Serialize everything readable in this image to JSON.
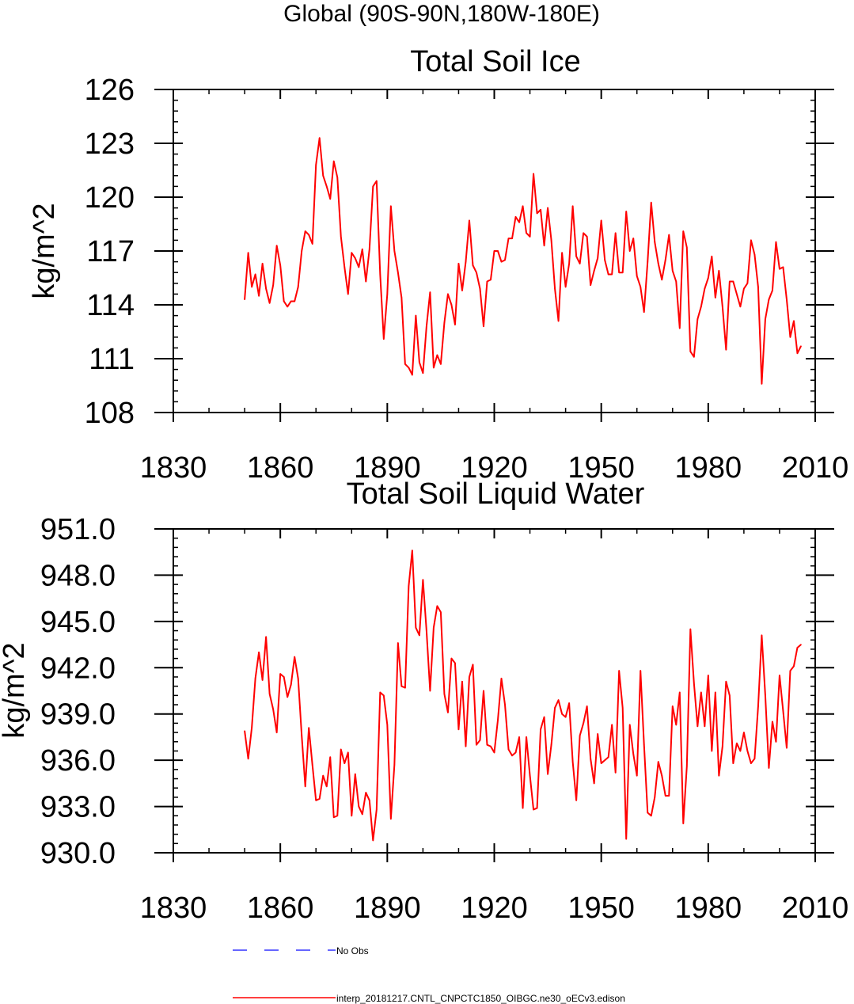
{
  "figure": {
    "title": "Global (90S-90N,180W-180E)"
  },
  "chart_data": [
    {
      "type": "line",
      "title": "Total Soil Ice",
      "xlabel": "",
      "ylabel": "kg/m^2",
      "xlim": [
        1830,
        2010
      ],
      "ylim": [
        108,
        126
      ],
      "x_ticks": [
        1830,
        1860,
        1890,
        1920,
        1950,
        1980,
        2010
      ],
      "y_ticks": [
        108,
        111,
        114,
        117,
        120,
        123,
        126
      ],
      "y_decimals": 0,
      "series": [
        {
          "name": "interp_20181217.CNTL_CNPCTC1850_OIBGC.ne30_oECv3.edison",
          "color": "#ff0000",
          "x_start": 1850,
          "values": [
            114.3,
            116.9,
            115.0,
            115.7,
            114.5,
            116.3,
            114.9,
            114.1,
            115.1,
            117.3,
            116.2,
            114.2,
            113.9,
            114.2,
            114.2,
            115.0,
            117.0,
            118.1,
            117.9,
            117.4,
            121.8,
            123.3,
            121.2,
            120.6,
            119.9,
            122.0,
            121.1,
            117.8,
            116.1,
            114.6,
            116.9,
            116.6,
            116.1,
            117.1,
            115.3,
            117.1,
            120.6,
            120.9,
            115.7,
            112.1,
            114.6,
            119.5,
            117.0,
            115.8,
            114.4,
            110.7,
            110.5,
            110.1,
            113.4,
            110.8,
            110.2,
            112.8,
            114.7,
            110.5,
            111.2,
            110.7,
            113.0,
            114.6,
            114.0,
            112.9,
            116.3,
            114.8,
            116.4,
            118.7,
            116.2,
            115.8,
            114.9,
            112.8,
            115.3,
            115.4,
            117.0,
            117.0,
            116.4,
            116.5,
            117.7,
            117.7,
            118.9,
            118.6,
            119.5,
            118.0,
            117.8,
            121.3,
            119.1,
            119.3,
            117.3,
            119.4,
            117.6,
            114.9,
            113.1,
            116.9,
            115.0,
            116.3,
            119.5,
            116.7,
            116.3,
            118.0,
            117.8,
            115.1,
            115.9,
            116.6,
            118.7,
            116.5,
            115.7,
            115.7,
            118.0,
            115.8,
            115.8,
            119.2,
            117.0,
            117.7,
            115.6,
            115.0,
            113.6,
            116.4,
            119.7,
            117.5,
            116.3,
            115.4,
            116.5,
            117.9,
            115.9,
            115.3,
            112.7,
            118.1,
            117.2,
            111.4,
            111.1,
            113.2,
            113.9,
            114.9,
            115.5,
            116.7,
            114.4,
            115.9,
            113.9,
            111.5,
            115.3,
            115.3,
            114.6,
            113.9,
            114.9,
            115.2,
            117.6,
            116.8,
            115.0,
            109.6,
            113.2,
            114.3,
            114.8,
            117.5,
            116.0,
            116.1,
            114.3,
            112.2,
            113.1,
            111.3,
            111.7
          ]
        }
      ]
    },
    {
      "type": "line",
      "title": "Total Soil Liquid Water",
      "xlabel": "",
      "ylabel": "kg/m^2",
      "xlim": [
        1830,
        2010
      ],
      "ylim": [
        930,
        951
      ],
      "x_ticks": [
        1830,
        1860,
        1890,
        1920,
        1950,
        1980,
        2010
      ],
      "y_ticks": [
        930,
        933,
        936,
        939,
        942,
        945,
        948,
        951
      ],
      "y_decimals": 1,
      "series": [
        {
          "name": "interp_20181217.CNTL_CNPCTC1850_OIBGC.ne30_oECv3.edison",
          "color": "#ff0000",
          "x_start": 1850,
          "values": [
            937.9,
            936.1,
            938.1,
            941.3,
            943.0,
            941.2,
            944.0,
            940.3,
            939.3,
            937.8,
            941.6,
            941.4,
            940.1,
            940.9,
            942.7,
            941.3,
            937.6,
            934.3,
            938.1,
            935.7,
            933.4,
            933.5,
            935.0,
            934.3,
            936.2,
            932.3,
            932.4,
            936.7,
            935.8,
            936.5,
            932.4,
            935.1,
            933.0,
            932.5,
            933.9,
            933.4,
            930.8,
            932.8,
            940.4,
            940.2,
            938.3,
            932.2,
            935.7,
            943.6,
            940.8,
            940.7,
            947.3,
            949.6,
            944.6,
            944.1,
            947.7,
            944.4,
            940.5,
            944.6,
            946.0,
            945.6,
            940.3,
            939.1,
            942.6,
            942.3,
            938.0,
            941.1,
            936.9,
            941.4,
            942.2,
            937.0,
            937.3,
            940.5,
            937.0,
            936.9,
            936.5,
            938.6,
            941.3,
            939.6,
            936.7,
            936.3,
            936.5,
            937.5,
            932.9,
            937.5,
            935.0,
            932.8,
            932.9,
            938.0,
            938.8,
            935.1,
            937.0,
            939.4,
            939.9,
            939.0,
            938.8,
            939.7,
            935.9,
            933.4,
            937.6,
            938.4,
            939.5,
            936.1,
            934.5,
            937.7,
            935.8,
            936.0,
            936.2,
            938.3,
            935.2,
            941.8,
            939.4,
            930.9,
            938.3,
            936.4,
            935.0,
            941.8,
            937.0,
            932.6,
            932.4,
            933.6,
            935.9,
            935.0,
            933.7,
            933.7,
            939.5,
            938.3,
            940.4,
            931.9,
            935.6,
            944.5,
            941.0,
            938.2,
            940.4,
            938.2,
            941.5,
            936.6,
            940.4,
            935.0,
            936.9,
            941.1,
            940.2,
            935.8,
            937.1,
            936.6,
            937.8,
            936.6,
            935.8,
            936.1,
            939.5,
            944.1,
            940.2,
            935.5,
            938.5,
            937.2,
            941.5,
            939.2,
            936.8,
            941.8,
            942.1,
            943.3,
            943.5
          ]
        }
      ]
    }
  ],
  "legend": [
    {
      "label": "No Obs",
      "color": "#3333ff",
      "style": "dashed"
    },
    {
      "label": "interp_20181217.CNTL_CNPCTC1850_OIBGC.ne30_oECv3.edison",
      "color": "#ff0000",
      "style": "solid"
    }
  ]
}
